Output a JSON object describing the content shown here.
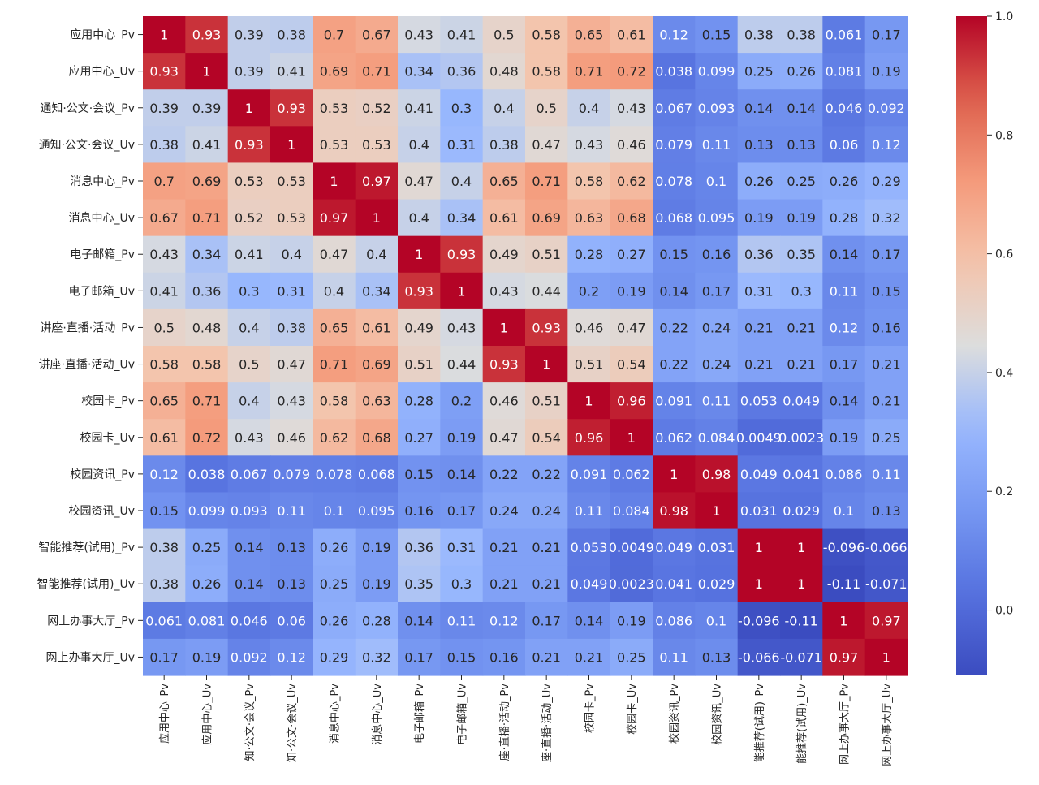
{
  "chart_data": {
    "type": "heatmap",
    "title": "",
    "xlabel": "",
    "ylabel": "",
    "row_labels": [
      "应用中心_Pv",
      "应用中心_Uv",
      "通知·公文·会议_Pv",
      "通知·公文·会议_Uv",
      "消息中心_Pv",
      "消息中心_Uv",
      "电子邮箱_Pv",
      "电子邮箱_Uv",
      "讲座·直播·活动_Pv",
      "讲座·直播·活动_Uv",
      "校园卡_Pv",
      "校园卡_Uv",
      "校园资讯_Pv",
      "校园资讯_Uv",
      "智能推荐(试用)_Pv",
      "智能推荐(试用)_Uv",
      "网上办事大厅_Pv",
      "网上办事大厅_Uv"
    ],
    "col_labels": [
      "应用中心_Pv",
      "应用中心_Uv",
      "​知·公文·会议_Pv",
      "​知·公文·会议_Uv",
      "消息中心_Pv",
      "消息中心_Uv",
      "电子邮箱_Pv",
      "电子邮箱_Uv",
      "​座·直播·活动_Pv",
      "​座·直播·活动_Uv",
      "校园卡_Pv",
      "校园卡_Uv",
      "校园资讯_Pv",
      "校园资讯_Uv",
      "​能推荐(试用)_Pv",
      "​能推荐(试用)_Uv",
      "网上办事大厅_Pv",
      "网上办事大厅_Uv"
    ],
    "values": [
      [
        1,
        0.93,
        0.39,
        0.38,
        0.7,
        0.67,
        0.43,
        0.41,
        0.5,
        0.58,
        0.65,
        0.61,
        0.12,
        0.15,
        0.38,
        0.38,
        0.061,
        0.17
      ],
      [
        0.93,
        1,
        0.39,
        0.41,
        0.69,
        0.71,
        0.34,
        0.36,
        0.48,
        0.58,
        0.71,
        0.72,
        0.038,
        0.099,
        0.25,
        0.26,
        0.081,
        0.19
      ],
      [
        0.39,
        0.39,
        1,
        0.93,
        0.53,
        0.52,
        0.41,
        0.3,
        0.4,
        0.5,
        0.4,
        0.43,
        0.067,
        0.093,
        0.14,
        0.14,
        0.046,
        0.092
      ],
      [
        0.38,
        0.41,
        0.93,
        1,
        0.53,
        0.53,
        0.4,
        0.31,
        0.38,
        0.47,
        0.43,
        0.46,
        0.079,
        0.11,
        0.13,
        0.13,
        0.06,
        0.12
      ],
      [
        0.7,
        0.69,
        0.53,
        0.53,
        1,
        0.97,
        0.47,
        0.4,
        0.65,
        0.71,
        0.58,
        0.62,
        0.078,
        0.1,
        0.26,
        0.25,
        0.26,
        0.29
      ],
      [
        0.67,
        0.71,
        0.52,
        0.53,
        0.97,
        1,
        0.4,
        0.34,
        0.61,
        0.69,
        0.63,
        0.68,
        0.068,
        0.095,
        0.19,
        0.19,
        0.28,
        0.32
      ],
      [
        0.43,
        0.34,
        0.41,
        0.4,
        0.47,
        0.4,
        1,
        0.93,
        0.49,
        0.51,
        0.28,
        0.27,
        0.15,
        0.16,
        0.36,
        0.35,
        0.14,
        0.17
      ],
      [
        0.41,
        0.36,
        0.3,
        0.31,
        0.4,
        0.34,
        0.93,
        1,
        0.43,
        0.44,
        0.2,
        0.19,
        0.14,
        0.17,
        0.31,
        0.3,
        0.11,
        0.15
      ],
      [
        0.5,
        0.48,
        0.4,
        0.38,
        0.65,
        0.61,
        0.49,
        0.43,
        1,
        0.93,
        0.46,
        0.47,
        0.22,
        0.24,
        0.21,
        0.21,
        0.12,
        0.16
      ],
      [
        0.58,
        0.58,
        0.5,
        0.47,
        0.71,
        0.69,
        0.51,
        0.44,
        0.93,
        1,
        0.51,
        0.54,
        0.22,
        0.24,
        0.21,
        0.21,
        0.17,
        0.21
      ],
      [
        0.65,
        0.71,
        0.4,
        0.43,
        0.58,
        0.63,
        0.28,
        0.2,
        0.46,
        0.51,
        1,
        0.96,
        0.091,
        0.11,
        0.053,
        0.049,
        0.14,
        0.21
      ],
      [
        0.61,
        0.72,
        0.43,
        0.46,
        0.62,
        0.68,
        0.27,
        0.19,
        0.47,
        0.54,
        0.96,
        1,
        0.062,
        0.084,
        0.0049,
        0.0023,
        0.19,
        0.25
      ],
      [
        0.12,
        0.038,
        0.067,
        0.079,
        0.078,
        0.068,
        0.15,
        0.14,
        0.22,
        0.22,
        0.091,
        0.062,
        1,
        0.98,
        0.049,
        0.041,
        0.086,
        0.11
      ],
      [
        0.15,
        0.099,
        0.093,
        0.11,
        0.1,
        0.095,
        0.16,
        0.17,
        0.24,
        0.24,
        0.11,
        0.084,
        0.98,
        1,
        0.031,
        0.029,
        0.1,
        0.13
      ],
      [
        0.38,
        0.25,
        0.14,
        0.13,
        0.26,
        0.19,
        0.36,
        0.31,
        0.21,
        0.21,
        0.053,
        0.0049,
        0.049,
        0.031,
        1,
        1,
        -0.096,
        -0.066
      ],
      [
        0.38,
        0.26,
        0.14,
        0.13,
        0.25,
        0.19,
        0.35,
        0.3,
        0.21,
        0.21,
        0.049,
        0.0023,
        0.041,
        0.029,
        1,
        1,
        -0.11,
        -0.071
      ],
      [
        0.061,
        0.081,
        0.046,
        0.06,
        0.26,
        0.28,
        0.14,
        0.11,
        0.12,
        0.17,
        0.14,
        0.19,
        0.086,
        0.1,
        -0.096,
        -0.11,
        1,
        0.97
      ],
      [
        0.17,
        0.19,
        0.092,
        0.12,
        0.29,
        0.32,
        0.17,
        0.15,
        0.16,
        0.21,
        0.21,
        0.25,
        0.11,
        0.13,
        -0.066,
        -0.071,
        0.97,
        1
      ]
    ],
    "colormap": "coolwarm",
    "vmin": -0.11,
    "vmax": 1.0,
    "colorbar_ticks": [
      0.0,
      0.2,
      0.4,
      0.6,
      0.8,
      1.0
    ],
    "colorbar_tick_labels": [
      "0.0",
      "0.2",
      "0.4",
      "0.6",
      "0.8",
      "1.0"
    ],
    "annotations": true
  }
}
